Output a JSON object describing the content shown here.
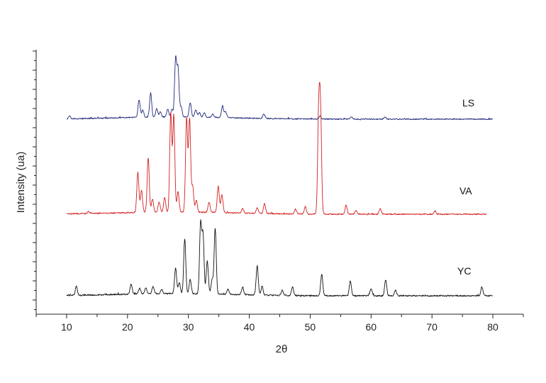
{
  "chart_data": {
    "type": "line",
    "xlabel": "2θ",
    "ylabel": "Intensity (ua)",
    "xlim": [
      5,
      85
    ],
    "x_ticks": [
      "10",
      "20",
      "30",
      "40",
      "50",
      "60",
      "70",
      "80"
    ],
    "grid": false,
    "series": [
      {
        "name": "LS",
        "color": "#1f2a7a",
        "baseline": 0.22,
        "noise": 0.0075,
        "x_range": [
          10,
          80
        ],
        "peaks": [
          [
            10.5,
            0.04
          ],
          [
            21.9,
            0.24
          ],
          [
            22.5,
            0.1
          ],
          [
            23.8,
            0.33
          ],
          [
            24.8,
            0.12
          ],
          [
            25.4,
            0.07
          ],
          [
            26.6,
            0.11
          ],
          [
            27.3,
            0.1
          ],
          [
            27.9,
            0.8
          ],
          [
            28.3,
            0.65
          ],
          [
            28.8,
            0.14
          ],
          [
            30.3,
            0.2
          ],
          [
            31.2,
            0.1
          ],
          [
            31.8,
            0.06
          ],
          [
            32.6,
            0.06
          ],
          [
            34.0,
            0.05
          ],
          [
            35.6,
            0.16
          ],
          [
            36.1,
            0.08
          ],
          [
            42.4,
            0.06
          ],
          [
            51.6,
            0.04
          ],
          [
            56.8,
            0.03
          ],
          [
            62.3,
            0.03
          ]
        ]
      },
      {
        "name": "VA",
        "color": "#d42020",
        "baseline": 0.25,
        "noise": 0.008,
        "x_range": [
          10,
          79
        ],
        "peaks": [
          [
            13.6,
            0.03
          ],
          [
            21.7,
            0.55
          ],
          [
            22.3,
            0.3
          ],
          [
            23.4,
            0.75
          ],
          [
            24.1,
            0.18
          ],
          [
            25.2,
            0.14
          ],
          [
            26.1,
            0.2
          ],
          [
            27.1,
            1.35
          ],
          [
            27.6,
            1.32
          ],
          [
            28.3,
            0.28
          ],
          [
            29.7,
            1.28
          ],
          [
            30.2,
            1.27
          ],
          [
            30.7,
            0.35
          ],
          [
            31.3,
            0.16
          ],
          [
            33.4,
            0.14
          ],
          [
            34.9,
            0.36
          ],
          [
            35.5,
            0.25
          ],
          [
            38.9,
            0.06
          ],
          [
            41.3,
            0.08
          ],
          [
            42.5,
            0.14
          ],
          [
            47.6,
            0.06
          ],
          [
            49.2,
            0.1
          ],
          [
            51.4,
            1.35
          ],
          [
            51.7,
            1.32
          ],
          [
            55.9,
            0.12
          ],
          [
            57.5,
            0.05
          ],
          [
            61.5,
            0.08
          ],
          [
            70.5,
            0.05
          ]
        ]
      },
      {
        "name": "YC",
        "color": "#111111",
        "baseline": 0.3,
        "noise": 0.009,
        "x_range": [
          10,
          80
        ],
        "peaks": [
          [
            11.6,
            0.12
          ],
          [
            20.6,
            0.14
          ],
          [
            22.0,
            0.08
          ],
          [
            23.0,
            0.08
          ],
          [
            24.2,
            0.1
          ],
          [
            25.6,
            0.06
          ],
          [
            27.9,
            0.35
          ],
          [
            28.5,
            0.15
          ],
          [
            29.4,
            0.75
          ],
          [
            30.3,
            0.2
          ],
          [
            32.0,
            0.95
          ],
          [
            32.4,
            0.8
          ],
          [
            33.1,
            0.45
          ],
          [
            33.9,
            0.2
          ],
          [
            34.4,
            0.9
          ],
          [
            36.5,
            0.07
          ],
          [
            38.9,
            0.1
          ],
          [
            41.3,
            0.4
          ],
          [
            42.1,
            0.12
          ],
          [
            45.4,
            0.07
          ],
          [
            47.1,
            0.12
          ],
          [
            51.9,
            0.3
          ],
          [
            56.6,
            0.2
          ],
          [
            60.0,
            0.1
          ],
          [
            62.4,
            0.22
          ],
          [
            64.0,
            0.08
          ],
          [
            78.2,
            0.12
          ]
        ]
      }
    ]
  }
}
